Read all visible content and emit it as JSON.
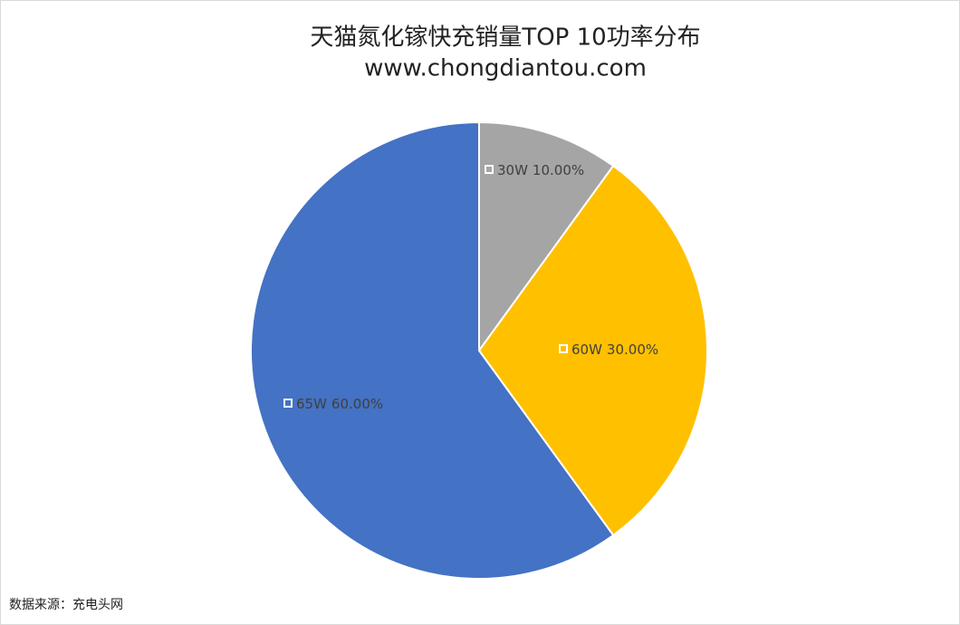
{
  "chart_data": {
    "type": "pie",
    "title": "天猫氮化镓快充销量TOP 10功率分布",
    "subtitle": "www.chongdiantou.com",
    "categories": [
      "30W",
      "60W",
      "65W"
    ],
    "values": [
      10,
      30,
      60
    ],
    "value_labels": [
      "10.00%",
      "30.00%",
      "60.00%"
    ],
    "colors": [
      "#a5a5a5",
      "#ffc000",
      "#4472c4"
    ],
    "source": "数据来源：充电头网"
  }
}
